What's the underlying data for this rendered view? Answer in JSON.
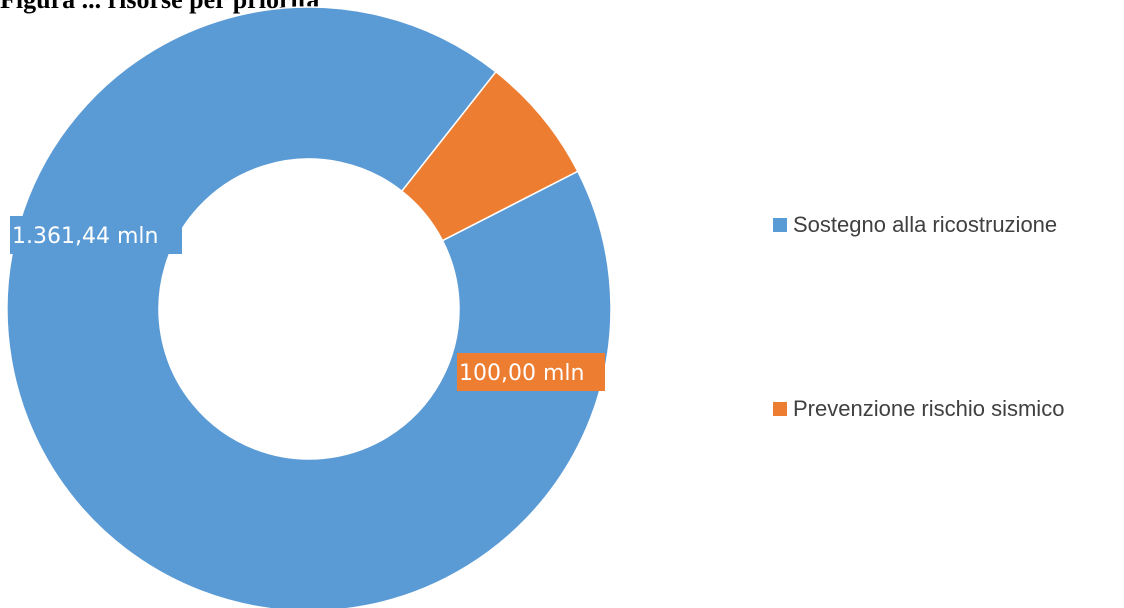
{
  "chart_data": {
    "type": "pie",
    "variant": "donut",
    "title": "",
    "title_partial": "Figura ... risorse per priorità",
    "categories": [
      "Sostegno alla ricostruzione",
      "Prevenzione rischio sismico"
    ],
    "values": [
      1361.44,
      100.0
    ],
    "unit": "mln",
    "data_labels": [
      "1.361,44 mln",
      "100,00 mln"
    ],
    "colors": [
      "#5B9BD5",
      "#ED7D31"
    ],
    "legend_position": "right"
  }
}
